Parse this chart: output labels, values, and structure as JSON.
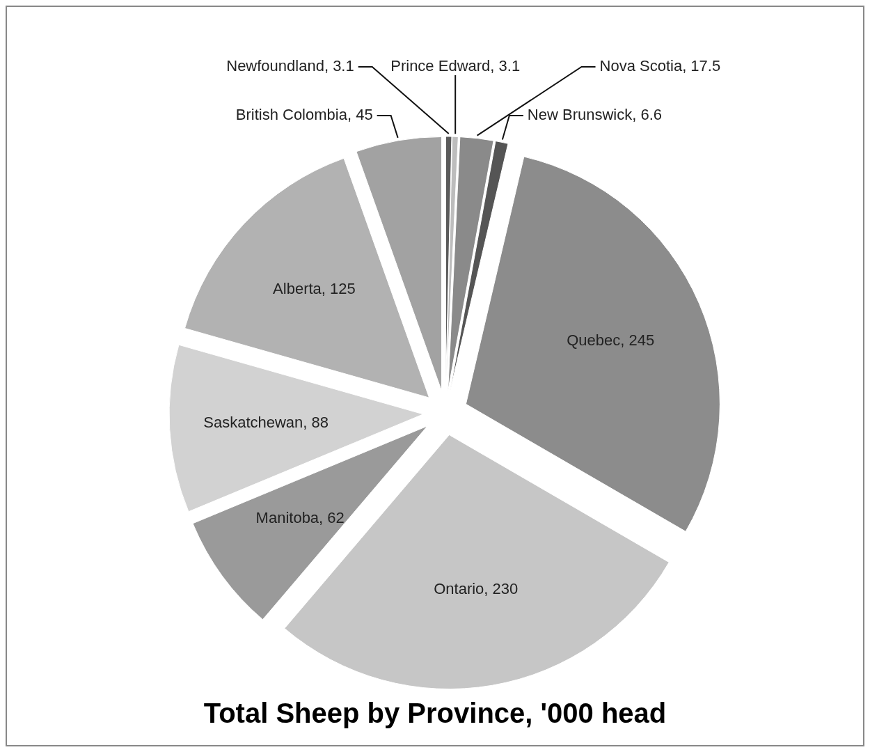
{
  "chart_data": {
    "type": "pie",
    "title": "Total Sheep by Province, '000 head",
    "categories": [
      "Newfoundland",
      "Prince Edward",
      "Nova Scotia",
      "New Brunswick",
      "Quebec",
      "Ontario",
      "Manitoba",
      "Saskatchewan",
      "Alberta",
      "British Colombia"
    ],
    "values": [
      3.1,
      3.1,
      17.5,
      6.6,
      245,
      230,
      62,
      88,
      125,
      45
    ],
    "colors": [
      "#5a5a5a",
      "#bdbdbd",
      "#8a8a8a",
      "#555555",
      "#8c8c8c",
      "#c6c6c6",
      "#9a9a9a",
      "#d2d2d2",
      "#b2b2b2",
      "#a2a2a2"
    ],
    "value_labels": [
      ", 3.1",
      ", 3.1",
      ", 17.5",
      ", 6.6",
      ", 245",
      ", 230",
      ", 62",
      ", 88",
      ", 125",
      ", 45"
    ]
  }
}
